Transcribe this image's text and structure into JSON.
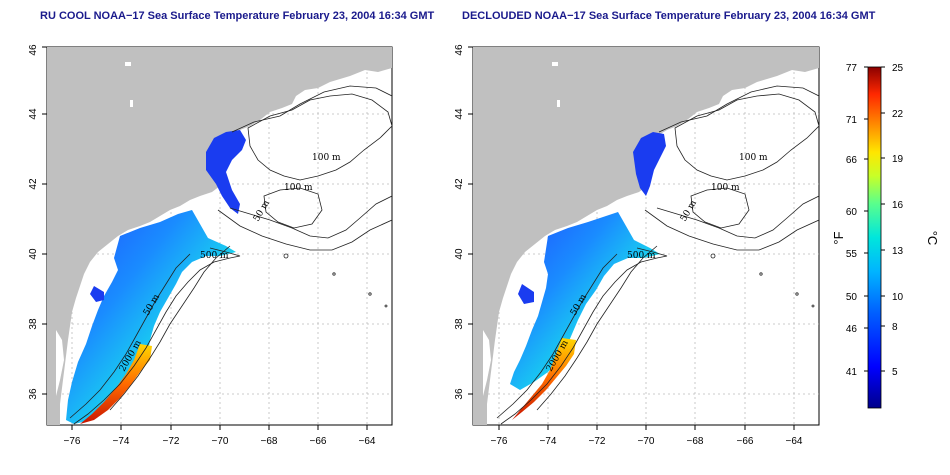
{
  "panels": [
    {
      "title": "RU COOL NOAA−17 Sea Surface Temperature February 23, 2004 16:34 GMT",
      "contour_labels": [
        "100 m",
        "100 m",
        "50 m",
        "500 m",
        "50 m",
        "2000 m"
      ]
    },
    {
      "title": "DECLOUDED NOAA−17 Sea Surface Temperature February 23, 2004 16:34 GMT",
      "contour_labels": [
        "100 m",
        "100 m",
        "50 m",
        "500 m",
        "50 m",
        "2000 m"
      ]
    }
  ],
  "axes": {
    "x_ticks": [
      "−76",
      "−74",
      "−72",
      "−70",
      "−68",
      "−66",
      "−64"
    ],
    "y_ticks": [
      "36",
      "38",
      "40",
      "42",
      "44",
      "46"
    ]
  },
  "colorbar": {
    "fahrenheit_ticks": [
      "77",
      "71",
      "66",
      "60",
      "55",
      "50",
      "46",
      "41"
    ],
    "celsius_ticks": [
      "25",
      "22",
      "19",
      "16",
      "13",
      "10",
      "8",
      "5"
    ],
    "fahrenheit_unit": "°F",
    "celsius_unit": "°C"
  },
  "colors": {
    "land": "#c0c0c0",
    "ocean": "#ffffff",
    "title": "#1a1a8c"
  }
}
